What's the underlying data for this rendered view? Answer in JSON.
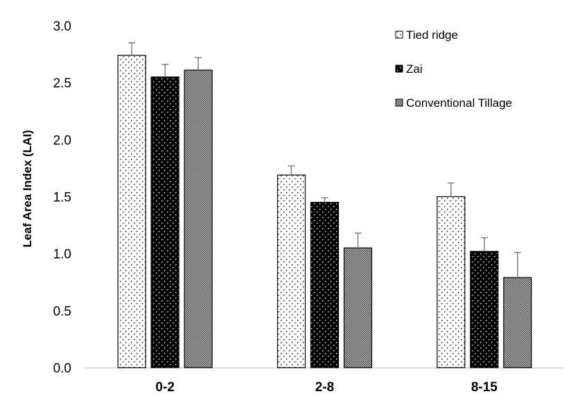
{
  "chart_data": {
    "type": "bar",
    "title": "",
    "xlabel": "",
    "ylabel": "Leaf Area Index (LAI)",
    "categories": [
      "0-2",
      "2-8",
      "8-15"
    ],
    "ylim": [
      0,
      3
    ],
    "yticks": [
      "0.0",
      "0.5",
      "1.0",
      "1.5",
      "2.0",
      "2.5",
      "3.0"
    ],
    "grid": false,
    "legend_position": "top-right",
    "error_bars": true,
    "series": [
      {
        "name": "Tied ridge",
        "pattern": "dots",
        "values": [
          2.74,
          1.69,
          1.5
        ],
        "errors": [
          0.11,
          0.08,
          0.12
        ]
      },
      {
        "name": "Zai",
        "pattern": "black-dots",
        "values": [
          2.55,
          1.45,
          1.02
        ],
        "errors": [
          0.11,
          0.04,
          0.12
        ]
      },
      {
        "name": "Conventional Tillage",
        "pattern": "checker",
        "values": [
          2.61,
          1.05,
          0.79
        ],
        "errors": [
          0.11,
          0.13,
          0.22
        ]
      }
    ]
  }
}
